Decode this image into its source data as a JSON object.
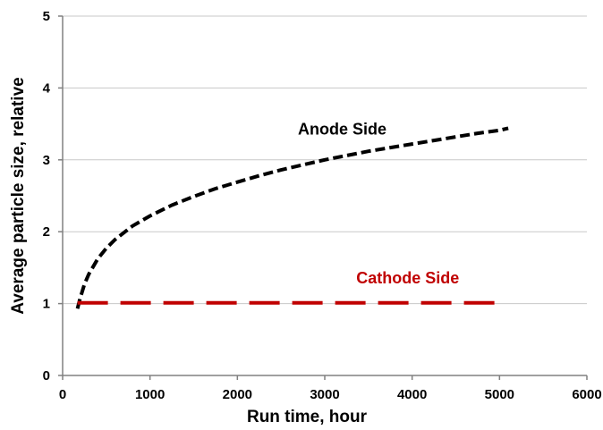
{
  "chart_data": {
    "type": "line",
    "title": "",
    "xlabel": "Run time, hour",
    "ylabel": "Average particle size, relative",
    "xlim": [
      0,
      6000
    ],
    "ylim": [
      0,
      5
    ],
    "x_ticks": [
      0,
      1000,
      2000,
      3000,
      4000,
      5000,
      6000
    ],
    "y_ticks": [
      0,
      1,
      2,
      3,
      4,
      5
    ],
    "grid": "horizontal",
    "legend": "none",
    "series": [
      {
        "name": "Anode Side",
        "color": "#000000",
        "dash": "short-dash",
        "x": [
          170,
          200,
          250,
          300,
          400,
          500,
          600,
          800,
          1000,
          1250,
          1500,
          1750,
          2000,
          2250,
          2500,
          2750,
          3000,
          3250,
          3500,
          3750,
          4000,
          4250,
          4500,
          4750,
          5000,
          5100
        ],
        "y": [
          0.93,
          1.07,
          1.27,
          1.41,
          1.62,
          1.77,
          1.89,
          2.08,
          2.22,
          2.37,
          2.49,
          2.6,
          2.69,
          2.78,
          2.86,
          2.93,
          3.0,
          3.06,
          3.12,
          3.17,
          3.22,
          3.27,
          3.32,
          3.37,
          3.41,
          3.44
        ]
      },
      {
        "name": "Cathode Side",
        "color": "#c00000",
        "dash": "long-dash",
        "x": [
          170,
          5080
        ],
        "y": [
          1.01,
          1.01
        ]
      }
    ]
  }
}
